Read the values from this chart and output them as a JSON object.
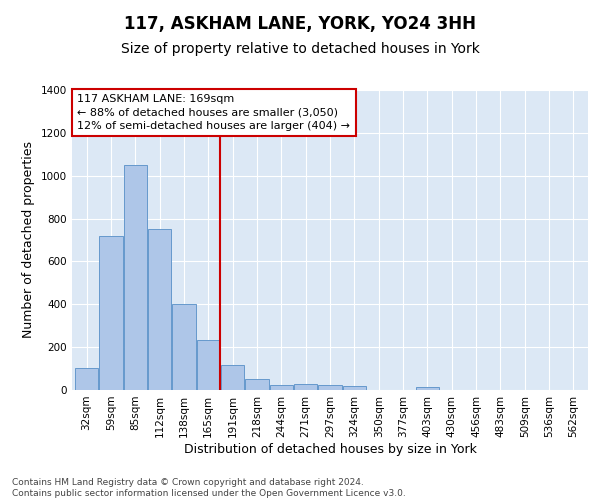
{
  "title": "117, ASKHAM LANE, YORK, YO24 3HH",
  "subtitle": "Size of property relative to detached houses in York",
  "xlabel": "Distribution of detached houses by size in York",
  "ylabel": "Number of detached properties",
  "footnote": "Contains HM Land Registry data © Crown copyright and database right 2024.\nContains public sector information licensed under the Open Government Licence v3.0.",
  "bar_labels": [
    "32sqm",
    "59sqm",
    "85sqm",
    "112sqm",
    "138sqm",
    "165sqm",
    "191sqm",
    "218sqm",
    "244sqm",
    "271sqm",
    "297sqm",
    "324sqm",
    "350sqm",
    "377sqm",
    "403sqm",
    "430sqm",
    "456sqm",
    "483sqm",
    "509sqm",
    "536sqm",
    "562sqm"
  ],
  "bar_values": [
    105,
    720,
    1050,
    750,
    400,
    235,
    115,
    50,
    22,
    27,
    22,
    18,
    0,
    0,
    15,
    0,
    0,
    0,
    0,
    0,
    0
  ],
  "bar_color": "#aec6e8",
  "bar_edge_color": "#6699cc",
  "vline_x": 5.5,
  "vline_color": "#cc0000",
  "annotation_text": "117 ASKHAM LANE: 169sqm\n← 88% of detached houses are smaller (3,050)\n12% of semi-detached houses are larger (404) →",
  "annotation_box_color": "#ffffff",
  "annotation_box_edge": "#cc0000",
  "ylim": [
    0,
    1400
  ],
  "yticks": [
    0,
    200,
    400,
    600,
    800,
    1000,
    1200,
    1400
  ],
  "background_color": "#e8f0f8",
  "plot_background": "#dce8f5",
  "grid_color": "#ffffff",
  "title_fontsize": 12,
  "subtitle_fontsize": 10,
  "tick_fontsize": 7.5,
  "label_fontsize": 9,
  "footnote_fontsize": 6.5
}
